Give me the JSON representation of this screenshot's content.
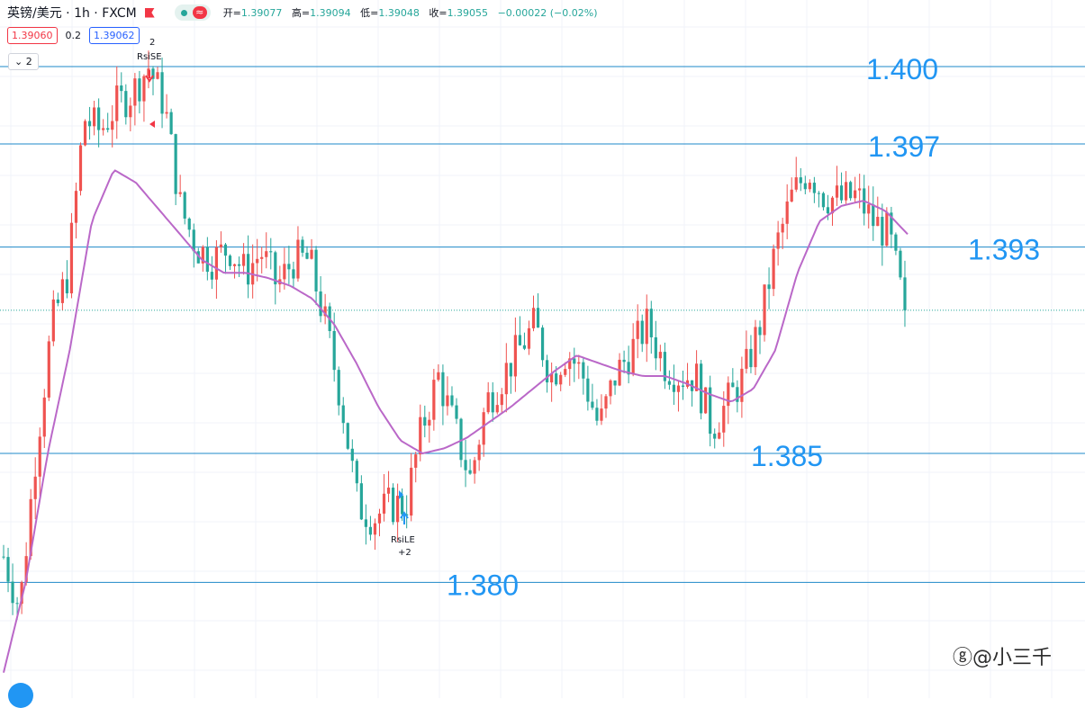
{
  "header": {
    "symbol": "英镑/美元 · 1h · FXCM",
    "open_label": "开=",
    "open": "1.39077",
    "high_label": "高=",
    "high": "1.39094",
    "low_label": "低=",
    "low": "1.39048",
    "close_label": "收=",
    "close": "1.39055",
    "change": "−0.00022 (−0.02%)",
    "approx_glyph": "≈"
  },
  "trade": {
    "sell": "1.39060",
    "spread": "0.2",
    "buy": "1.39062"
  },
  "indicator_toggle": "2",
  "watermark": "@小三千",
  "colors": {
    "up": "#ef5350",
    "down": "#26a69a",
    "ma": "#ba68c8",
    "level": "#1e88c8",
    "level_text": "#2196f3"
  },
  "chart_data": {
    "type": "candlestick",
    "symbol": "GBP/USD",
    "timeframe": "1h",
    "ylim": [
      1.3755,
      1.4015
    ],
    "levels": [
      {
        "price": 1.4,
        "label": "1.400"
      },
      {
        "price": 1.397,
        "label": "1.397"
      },
      {
        "price": 1.393,
        "label": "1.393"
      },
      {
        "price": 1.385,
        "label": "1.385"
      },
      {
        "price": 1.38,
        "label": "1.380"
      }
    ],
    "current_price": 1.39055,
    "series": [
      {
        "name": "close_path",
        "values": [
          1.381,
          1.379,
          1.385,
          1.39,
          1.392,
          1.398,
          1.3975,
          1.3985,
          1.399,
          1.4,
          1.3985,
          1.3945,
          1.393,
          1.3925,
          1.393,
          1.392,
          1.3928,
          1.3915,
          1.3925,
          1.3925,
          1.39,
          1.387,
          1.383,
          1.3825,
          1.383,
          1.383,
          1.386,
          1.388,
          1.386,
          1.384,
          1.387,
          1.388,
          1.389,
          1.39,
          1.388,
          1.389,
          1.388,
          1.386,
          1.388,
          1.389,
          1.39,
          1.3885,
          1.388,
          1.388,
          1.386,
          1.387,
          1.388,
          1.39,
          1.393,
          1.395,
          1.396,
          1.395,
          1.3948,
          1.395,
          1.394,
          1.3935,
          1.3905
        ]
      },
      {
        "name": "ma",
        "values": [
          1.3765,
          1.38,
          1.385,
          1.389,
          1.394,
          1.396,
          1.3955,
          1.3945,
          1.3935,
          1.3925,
          1.392,
          1.392,
          1.3918,
          1.3915,
          1.391,
          1.39,
          1.3885,
          1.3868,
          1.3855,
          1.385,
          1.3852,
          1.3856,
          1.3862,
          1.3868,
          1.3875,
          1.3882,
          1.3888,
          1.3885,
          1.3882,
          1.388,
          1.388,
          1.3877,
          1.3873,
          1.387,
          1.3875,
          1.389,
          1.392,
          1.394,
          1.3946,
          1.3948,
          1.3944,
          1.3935
        ]
      }
    ],
    "signals": [
      {
        "label": "RsiSE",
        "qty": "2"
      },
      {
        "label": "RsiLE",
        "qty": "+2"
      }
    ],
    "grid": true
  }
}
